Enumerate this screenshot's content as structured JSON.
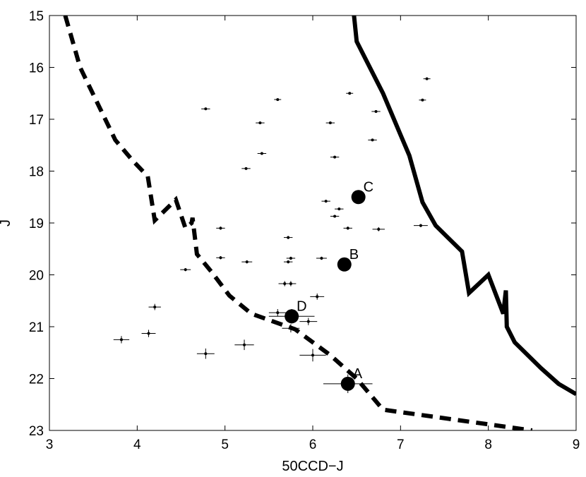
{
  "chart_data": {
    "type": "scatter",
    "title": "",
    "xlabel": "50CCD−J",
    "ylabel": "J",
    "xlim": [
      3,
      9
    ],
    "ylim": [
      15,
      23
    ],
    "y_inverted": true,
    "grid": false,
    "x_ticks": [
      3,
      4,
      5,
      6,
      7,
      8,
      9
    ],
    "y_ticks": [
      15,
      16,
      17,
      18,
      19,
      20,
      21,
      22,
      23
    ],
    "field_stars": [
      {
        "x": 7.3,
        "y": 16.22,
        "xerr": 0.04,
        "yerr": 0.02
      },
      {
        "x": 6.42,
        "y": 16.5,
        "xerr": 0.04,
        "yerr": 0.02
      },
      {
        "x": 5.6,
        "y": 16.62,
        "xerr": 0.04,
        "yerr": 0.02
      },
      {
        "x": 7.25,
        "y": 16.63,
        "xerr": 0.04,
        "yerr": 0.02
      },
      {
        "x": 4.78,
        "y": 16.8,
        "xerr": 0.05,
        "yerr": 0.02
      },
      {
        "x": 6.72,
        "y": 16.85,
        "xerr": 0.05,
        "yerr": 0.02
      },
      {
        "x": 5.4,
        "y": 17.07,
        "xerr": 0.05,
        "yerr": 0.02
      },
      {
        "x": 6.2,
        "y": 17.07,
        "xerr": 0.05,
        "yerr": 0.02
      },
      {
        "x": 6.68,
        "y": 17.4,
        "xerr": 0.05,
        "yerr": 0.02
      },
      {
        "x": 5.42,
        "y": 17.66,
        "xerr": 0.05,
        "yerr": 0.02
      },
      {
        "x": 6.25,
        "y": 17.73,
        "xerr": 0.05,
        "yerr": 0.02
      },
      {
        "x": 5.24,
        "y": 17.95,
        "xerr": 0.05,
        "yerr": 0.02
      },
      {
        "x": 6.15,
        "y": 18.58,
        "xerr": 0.05,
        "yerr": 0.02
      },
      {
        "x": 6.3,
        "y": 18.73,
        "xerr": 0.05,
        "yerr": 0.02
      },
      {
        "x": 6.25,
        "y": 18.87,
        "xerr": 0.05,
        "yerr": 0.02
      },
      {
        "x": 7.23,
        "y": 19.05,
        "xerr": 0.08,
        "yerr": 0.03
      },
      {
        "x": 4.95,
        "y": 19.1,
        "xerr": 0.05,
        "yerr": 0.03
      },
      {
        "x": 6.4,
        "y": 19.1,
        "xerr": 0.05,
        "yerr": 0.03
      },
      {
        "x": 6.75,
        "y": 19.12,
        "xerr": 0.07,
        "yerr": 0.04
      },
      {
        "x": 5.72,
        "y": 19.28,
        "xerr": 0.05,
        "yerr": 0.03
      },
      {
        "x": 4.95,
        "y": 19.67,
        "xerr": 0.05,
        "yerr": 0.03
      },
      {
        "x": 5.75,
        "y": 19.68,
        "xerr": 0.05,
        "yerr": 0.03
      },
      {
        "x": 6.1,
        "y": 19.68,
        "xerr": 0.06,
        "yerr": 0.03
      },
      {
        "x": 5.25,
        "y": 19.75,
        "xerr": 0.06,
        "yerr": 0.03
      },
      {
        "x": 5.72,
        "y": 19.75,
        "xerr": 0.05,
        "yerr": 0.03
      },
      {
        "x": 4.55,
        "y": 19.9,
        "xerr": 0.06,
        "yerr": 0.03
      },
      {
        "x": 5.68,
        "y": 20.17,
        "xerr": 0.07,
        "yerr": 0.05
      },
      {
        "x": 5.75,
        "y": 20.17,
        "xerr": 0.06,
        "yerr": 0.05
      },
      {
        "x": 6.05,
        "y": 20.42,
        "xerr": 0.08,
        "yerr": 0.06
      },
      {
        "x": 4.2,
        "y": 20.62,
        "xerr": 0.07,
        "yerr": 0.06
      },
      {
        "x": 5.6,
        "y": 20.73,
        "xerr": 0.1,
        "yerr": 0.07
      },
      {
        "x": 5.95,
        "y": 20.9,
        "xerr": 0.1,
        "yerr": 0.07
      },
      {
        "x": 5.75,
        "y": 21.03,
        "xerr": 0.1,
        "yerr": 0.08
      },
      {
        "x": 4.13,
        "y": 21.13,
        "xerr": 0.08,
        "yerr": 0.07
      },
      {
        "x": 3.82,
        "y": 21.25,
        "xerr": 0.09,
        "yerr": 0.07
      },
      {
        "x": 5.22,
        "y": 21.35,
        "xerr": 0.11,
        "yerr": 0.1
      },
      {
        "x": 4.78,
        "y": 21.52,
        "xerr": 0.1,
        "yerr": 0.1
      },
      {
        "x": 6.0,
        "y": 21.55,
        "xerr": 0.15,
        "yerr": 0.12
      }
    ],
    "labeled_points": [
      {
        "label": "A",
        "x": 6.4,
        "y": 22.1,
        "xerr": 0.28,
        "yerr": 0.18
      },
      {
        "label": "B",
        "x": 6.36,
        "y": 19.8,
        "xerr": 0.0,
        "yerr": 0.0
      },
      {
        "label": "C",
        "x": 6.52,
        "y": 18.5,
        "xerr": 0.0,
        "yerr": 0.0
      },
      {
        "label": "D",
        "x": 5.76,
        "y": 20.8,
        "xerr": 0.26,
        "yerr": 0.14
      }
    ],
    "series": [
      {
        "style": "dashed",
        "x": [
          3.18,
          3.35,
          3.55,
          3.75,
          3.95,
          4.12,
          4.2,
          4.38,
          4.44,
          4.55,
          4.62,
          4.63,
          4.68,
          4.85,
          5.05,
          5.3,
          5.8,
          6.2,
          6.5,
          6.8,
          8.5
        ],
        "y": [
          15.0,
          16.0,
          16.7,
          17.4,
          17.8,
          18.1,
          18.95,
          18.65,
          18.55,
          19.1,
          19.0,
          18.9,
          19.6,
          19.95,
          20.4,
          20.75,
          21.05,
          21.55,
          22.0,
          22.6,
          23.0
        ]
      },
      {
        "style": "solid",
        "x": [
          6.47,
          6.5,
          6.8,
          7.0,
          7.1,
          7.25,
          7.4,
          7.7,
          7.78,
          8.0,
          8.17,
          8.2,
          8.21,
          8.3,
          8.45,
          8.6,
          8.8,
          9.0
        ],
        "y": [
          15.0,
          15.5,
          16.5,
          17.3,
          17.7,
          18.6,
          19.05,
          19.55,
          20.35,
          20.0,
          20.75,
          20.3,
          21.0,
          21.3,
          21.55,
          21.8,
          22.1,
          22.3
        ]
      }
    ]
  }
}
